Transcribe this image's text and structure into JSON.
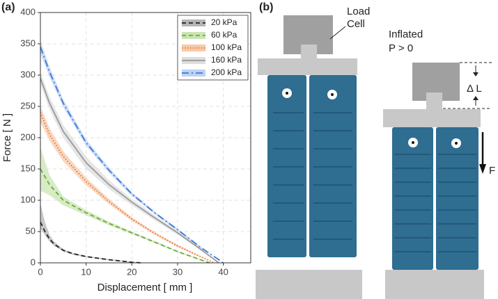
{
  "chart_data": {
    "type": "line",
    "panel_label": "(a)",
    "x_label": "Displacement [ mm ]",
    "y_label": "Force [ N ]",
    "xlim": [
      0,
      46
    ],
    "ylim": [
      0,
      400
    ],
    "xticks": [
      0,
      10,
      20,
      30,
      40
    ],
    "yticks": [
      0,
      50,
      100,
      150,
      200,
      250,
      300,
      350,
      400
    ],
    "grid": true,
    "legend": "upper right",
    "series": [
      {
        "name": "20 kPa",
        "color": "#222222",
        "band_color": "#b5b5b5",
        "linestyle": "dashed",
        "x": [
          0,
          1,
          2,
          3,
          5,
          7,
          10,
          15,
          20,
          22
        ],
        "values": [
          65,
          50,
          38,
          30,
          20,
          15,
          10,
          5,
          1,
          0
        ],
        "lower": [
          55,
          44,
          34,
          27,
          18,
          13,
          9,
          4,
          0,
          0
        ],
        "upper": [
          95,
          65,
          45,
          34,
          22,
          16,
          11,
          6,
          2,
          0
        ]
      },
      {
        "name": "60 kPa",
        "color": "#6aaa3a",
        "band_color": "#c9e4b2",
        "linestyle": "dashed",
        "x": [
          0,
          2,
          5,
          10,
          15,
          20,
          25,
          30,
          35,
          37
        ],
        "values": [
          150,
          125,
          100,
          80,
          63,
          48,
          33,
          18,
          5,
          0
        ],
        "lower": [
          115,
          108,
          92,
          76,
          60,
          46,
          32,
          17,
          4,
          0
        ],
        "upper": [
          185,
          140,
          106,
          84,
          66,
          50,
          35,
          19,
          6,
          0
        ]
      },
      {
        "name": "100 kPa",
        "color": "#e8702a",
        "band_color": "#f7caa9",
        "linestyle": "dotted",
        "x": [
          0,
          2,
          5,
          10,
          15,
          20,
          25,
          30,
          35,
          38
        ],
        "values": [
          240,
          205,
          170,
          130,
          98,
          70,
          47,
          27,
          10,
          0
        ],
        "lower": [
          225,
          195,
          162,
          124,
          94,
          67,
          45,
          25,
          9,
          0
        ],
        "upper": [
          250,
          215,
          178,
          136,
          102,
          73,
          49,
          29,
          11,
          0
        ]
      },
      {
        "name": "160 kPa",
        "color": "#999999",
        "band_color": "#dddddd",
        "linestyle": "solid",
        "x": [
          0,
          2,
          5,
          10,
          15,
          20,
          25,
          30,
          35,
          39
        ],
        "values": [
          295,
          255,
          210,
          160,
          125,
          97,
          72,
          48,
          22,
          0
        ],
        "lower": [
          285,
          245,
          200,
          150,
          118,
          92,
          68,
          45,
          20,
          0
        ],
        "upper": [
          305,
          265,
          220,
          170,
          132,
          102,
          76,
          51,
          24,
          0
        ]
      },
      {
        "name": "200 kPa",
        "color": "#3a78d8",
        "band_color": "#bcd2f1",
        "linestyle": "dashdot",
        "x": [
          0,
          2,
          5,
          10,
          15,
          20,
          25,
          30,
          35,
          40
        ],
        "values": [
          345,
          305,
          255,
          192,
          148,
          110,
          80,
          53,
          25,
          0
        ],
        "lower": [
          335,
          297,
          249,
          187,
          144,
          107,
          78,
          51,
          24,
          0
        ],
        "upper": [
          355,
          313,
          261,
          197,
          152,
          113,
          82,
          55,
          26,
          0
        ]
      }
    ]
  },
  "diagram": {
    "panel_label": "(b)",
    "load": "Load",
    "cell": "Cell",
    "inflated": "Inflated",
    "pressure": "P > 0",
    "delta_l": "Δ L",
    "force": "F"
  }
}
